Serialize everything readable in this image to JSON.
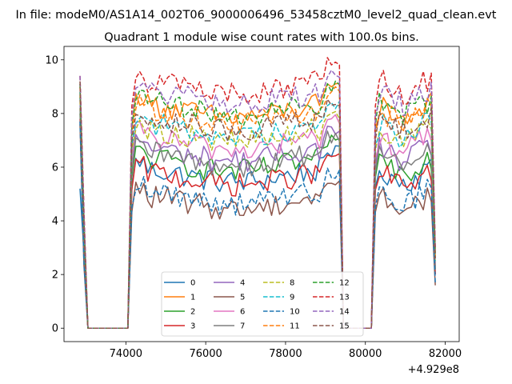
{
  "suptitle": "In file: modeM0/AS1A14_002T06_9000006496_53458cztM0_level2_quad_clean.evt",
  "chart_data": {
    "type": "line",
    "title": "Quadrant 1 module wise count rates with 100.0s bins.",
    "xlabel": "",
    "ylabel": "",
    "x_offset_label": "+4.929e8",
    "xlim": [
      72450,
      82350
    ],
    "ylim": [
      -0.5,
      10.5
    ],
    "x_ticks": [
      74000,
      76000,
      78000,
      80000,
      82000
    ],
    "x_tick_labels": [
      "74000",
      "76000",
      "78000",
      "80000",
      "82000"
    ],
    "y_ticks": [
      0,
      2,
      4,
      6,
      8,
      10
    ],
    "y_tick_labels": [
      "0",
      "2",
      "4",
      "6",
      "8",
      "10"
    ],
    "grid": false,
    "legend_position": "lower center",
    "legend_columns": 4,
    "segments": [
      {
        "start": 72850,
        "end": 72950,
        "kind": "edge"
      },
      {
        "start": 73050,
        "end": 74050,
        "kind": "zero"
      },
      {
        "start": 74150,
        "end": 79350,
        "kind": "data"
      },
      {
        "start": 79450,
        "end": 80150,
        "kind": "zero"
      },
      {
        "start": 80250,
        "end": 81750,
        "kind": "data"
      }
    ],
    "series": [
      {
        "name": "0",
        "color": "#1f77b4",
        "dash": "solid",
        "level": 5.7,
        "edge_value": 5.2,
        "end_value": 2.0
      },
      {
        "name": "1",
        "color": "#ff7f0e",
        "dash": "solid",
        "level": 8.1,
        "edge_value": 8.5,
        "end_value": 2.6
      },
      {
        "name": "2",
        "color": "#2ca02c",
        "dash": "solid",
        "level": 6.1,
        "edge_value": 8.0,
        "end_value": 2.2
      },
      {
        "name": "3",
        "color": "#d62728",
        "dash": "solid",
        "level": 5.6,
        "edge_value": 7.8,
        "end_value": 2.0
      },
      {
        "name": "4",
        "color": "#9467bd",
        "dash": "solid",
        "level": 6.5,
        "edge_value": 8.6,
        "end_value": 2.3
      },
      {
        "name": "5",
        "color": "#8c564b",
        "dash": "solid",
        "level": 4.7,
        "edge_value": 7.6,
        "end_value": 1.6
      },
      {
        "name": "6",
        "color": "#e377c2",
        "dash": "solid",
        "level": 6.9,
        "edge_value": 8.3,
        "end_value": 2.4
      },
      {
        "name": "7",
        "color": "#7f7f7f",
        "dash": "solid",
        "level": 6.3,
        "edge_value": 8.2,
        "end_value": 2.2
      },
      {
        "name": "8",
        "color": "#bcbd22",
        "dash": "dashed",
        "level": 7.2,
        "edge_value": 8.7,
        "end_value": 2.5
      },
      {
        "name": "9",
        "color": "#17becf",
        "dash": "dashed",
        "level": 7.4,
        "edge_value": 8.8,
        "end_value": 2.5
      },
      {
        "name": "10",
        "color": "#1f77b4",
        "dash": "dashed",
        "level": 4.9,
        "edge_value": 7.7,
        "end_value": 1.7
      },
      {
        "name": "11",
        "color": "#ff7f0e",
        "dash": "dashed",
        "level": 7.9,
        "edge_value": 9.0,
        "end_value": 2.7
      },
      {
        "name": "12",
        "color": "#2ca02c",
        "dash": "dashed",
        "level": 8.2,
        "edge_value": 9.1,
        "end_value": 2.8
      },
      {
        "name": "13",
        "color": "#d62728",
        "dash": "dashed",
        "level": 9.0,
        "edge_value": 9.4,
        "end_value": 3.0
      },
      {
        "name": "14",
        "color": "#9467bd",
        "dash": "dashed",
        "level": 8.6,
        "edge_value": 9.4,
        "end_value": 2.9
      },
      {
        "name": "15",
        "color": "#8c564b",
        "dash": "dashed",
        "level": 7.6,
        "edge_value": 9.2,
        "end_value": 2.6
      }
    ]
  }
}
